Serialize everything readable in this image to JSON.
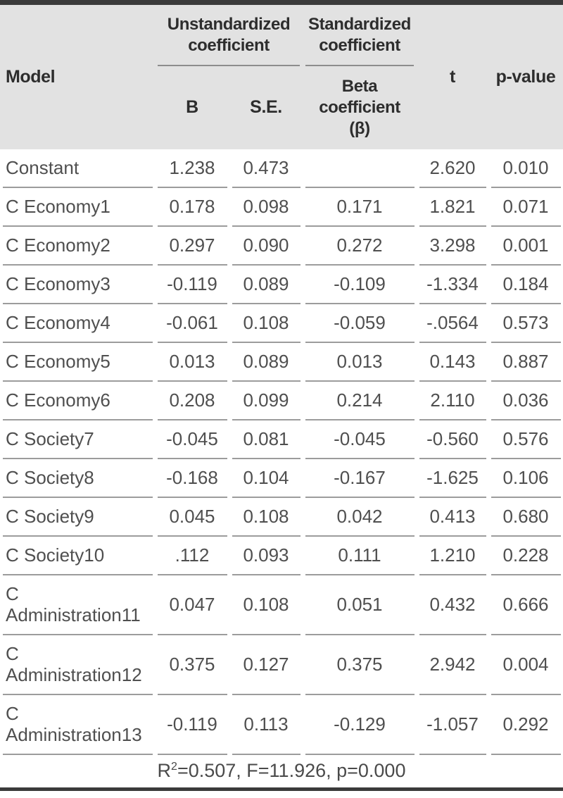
{
  "table": {
    "title_semantic": "multiple-regression-results-table",
    "header": {
      "model": "Model",
      "group_unstandardized": "Unstandardized\ncoefficient",
      "group_standardized": "Standardized\ncoefficient",
      "col_b": "B",
      "col_se": "S.E.",
      "col_beta": "Beta\ncoefficient\n(β)",
      "col_t": "t",
      "col_p": "p-value"
    },
    "rows": [
      {
        "model": "Constant",
        "b": "1.238",
        "se": "0.473",
        "beta": "",
        "t": "2.620",
        "p": "0.010"
      },
      {
        "model": "C Economy1",
        "b": "0.178",
        "se": "0.098",
        "beta": "0.171",
        "t": "1.821",
        "p": "0.071"
      },
      {
        "model": "C Economy2",
        "b": "0.297",
        "se": "0.090",
        "beta": "0.272",
        "t": "3.298",
        "p": "0.001"
      },
      {
        "model": "C Economy3",
        "b": "-0.119",
        "se": "0.089",
        "beta": "-0.109",
        "t": "-1.334",
        "p": "0.184"
      },
      {
        "model": "C Economy4",
        "b": "-0.061",
        "se": "0.108",
        "beta": "-0.059",
        "t": "-.0564",
        "p": "0.573"
      },
      {
        "model": "C Economy5",
        "b": "0.013",
        "se": "0.089",
        "beta": "0.013",
        "t": "0.143",
        "p": "0.887"
      },
      {
        "model": "C Economy6",
        "b": "0.208",
        "se": "0.099",
        "beta": "0.214",
        "t": "2.110",
        "p": "0.036"
      },
      {
        "model": "C Society7",
        "b": "-0.045",
        "se": "0.081",
        "beta": "-0.045",
        "t": "-0.560",
        "p": "0.576"
      },
      {
        "model": "C Society8",
        "b": "-0.168",
        "se": "0.104",
        "beta": "-0.167",
        "t": "-1.625",
        "p": "0.106"
      },
      {
        "model": "C Society9",
        "b": "0.045",
        "se": "0.108",
        "beta": "0.042",
        "t": "0.413",
        "p": "0.680"
      },
      {
        "model": "C Society10",
        "b": ".112",
        "se": "0.093",
        "beta": "0.111",
        "t": "1.210",
        "p": "0.228"
      },
      {
        "model": "C Administration11",
        "b": "0.047",
        "se": "0.108",
        "beta": "0.051",
        "t": "0.432",
        "p": "0.666"
      },
      {
        "model": "C Administration12",
        "b": "0.375",
        "se": "0.127",
        "beta": "0.375",
        "t": "2.942",
        "p": "0.004"
      },
      {
        "model": "C Administration13",
        "b": "-0.119",
        "se": "0.113",
        "beta": "-0.129",
        "t": "-1.057",
        "p": "0.292"
      }
    ],
    "footer": {
      "r_label": "R",
      "r_sup": "2",
      "rest": "=0.507, F=11.926, p=0.000"
    }
  },
  "colors": {
    "header_background": "#e2e2e2",
    "outer_rule": "#3b3b3b",
    "row_divider": "#9c9c9c",
    "header_text": "#2d2d2d",
    "body_text": "#4f4f4f"
  }
}
